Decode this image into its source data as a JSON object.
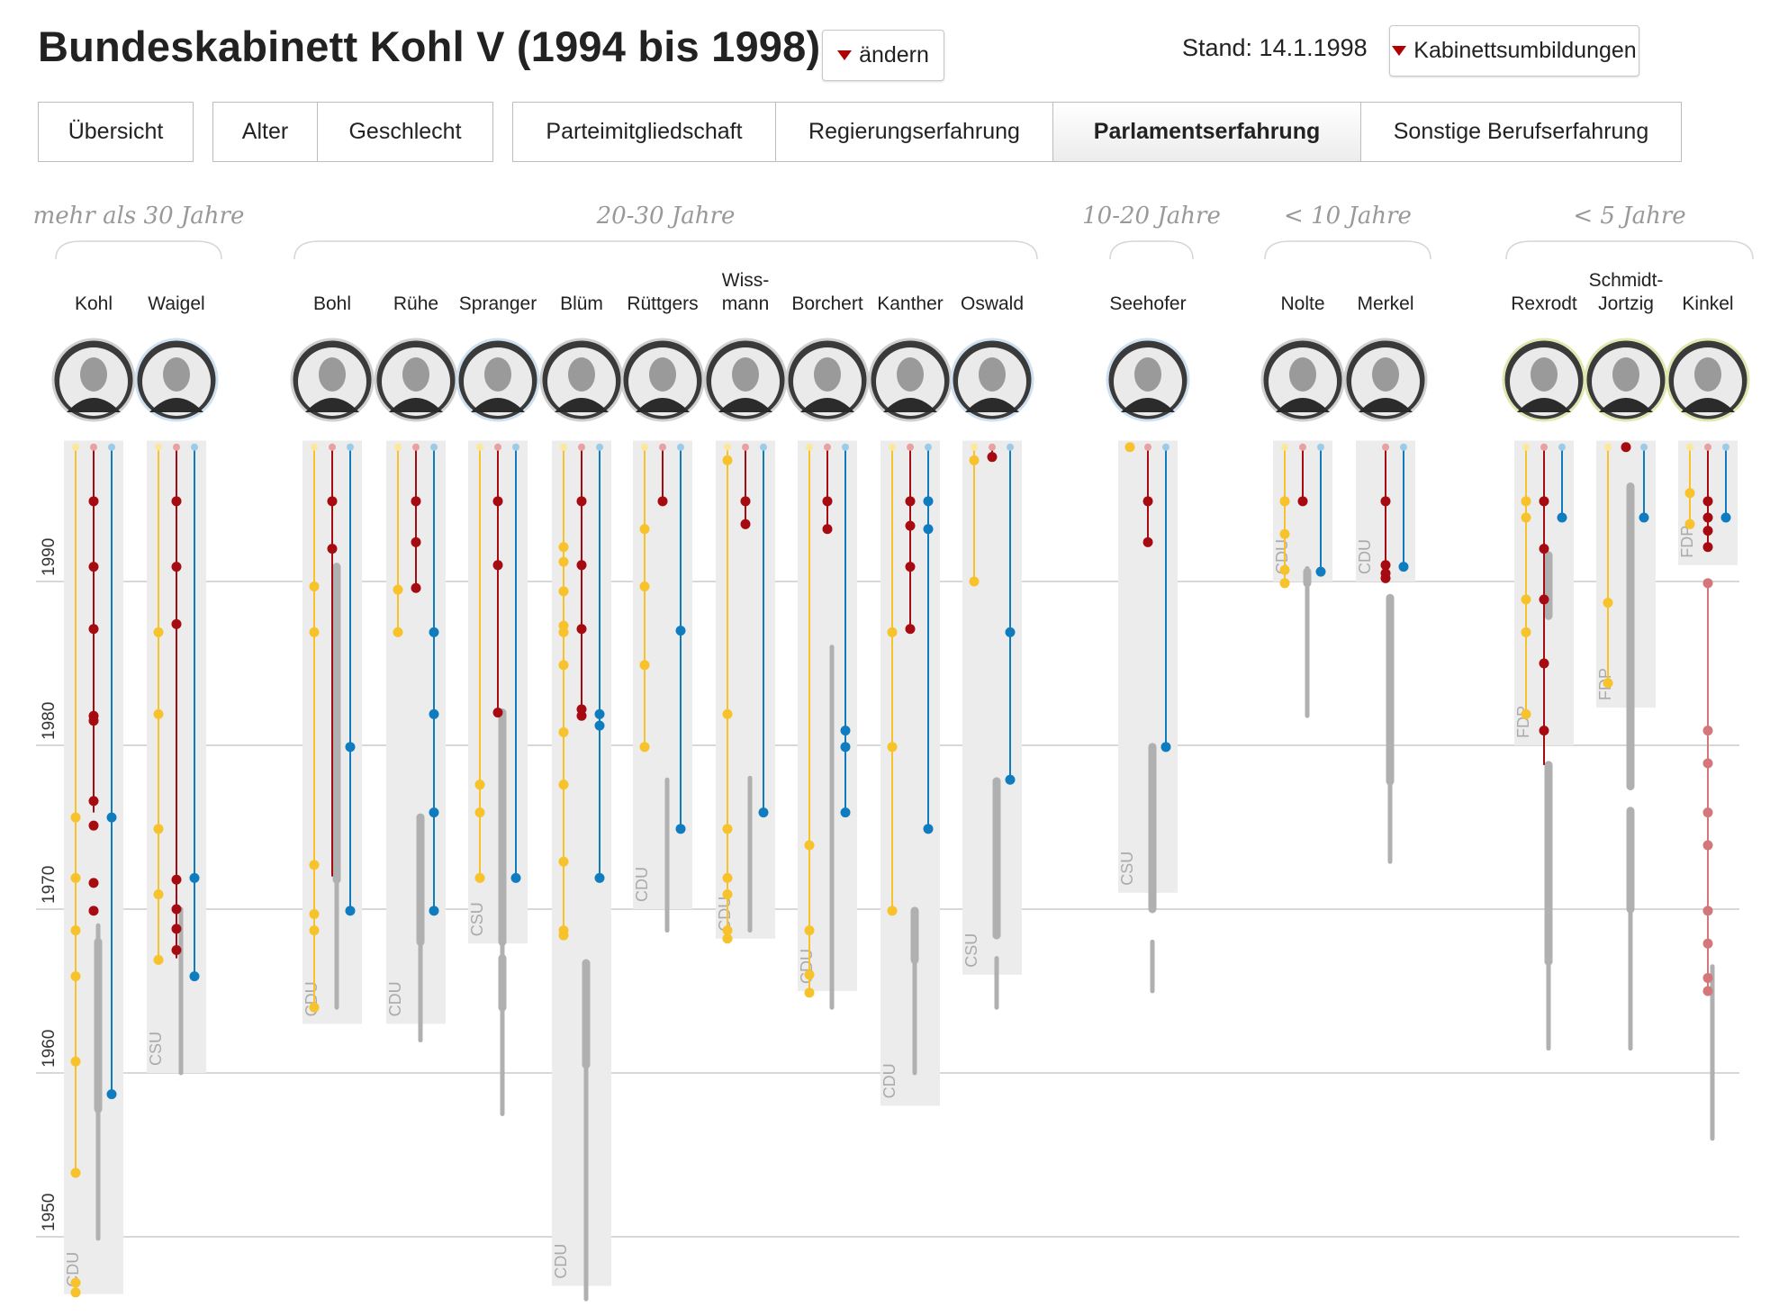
{
  "header": {
    "title": "Bundeskabinett  Kohl V (1994 bis 1998)",
    "change_label": "ändern",
    "stand": "Stand: 14.1.1998",
    "reshuffle_label": "Kabinettsumbildungen"
  },
  "tabs": [
    [
      {
        "label": "Übersicht",
        "active": false
      }
    ],
    [
      {
        "label": "Alter",
        "active": false
      },
      {
        "label": "Geschlecht",
        "active": false
      }
    ],
    [
      {
        "label": "Parteimitgliedschaft",
        "active": false
      },
      {
        "label": "Regierungserfahrung",
        "active": false
      },
      {
        "label": "Parlamentserfahrung",
        "active": true
      },
      {
        "label": "Sonstige Berufserfahrung",
        "active": false
      }
    ]
  ],
  "colors": {
    "landtag": "#f7c22a",
    "bundestag": "#a60b11",
    "bundestag_pre": "#d4777a",
    "europa": "#0f7cbf",
    "party_band": "#ececec",
    "career_bar": "#b0b0b0",
    "gridline": "#cccccc"
  },
  "chart_data": {
    "type": "timeline",
    "y_axis": {
      "range": [
        1998,
        1947
      ],
      "ticks": [
        1990,
        1980,
        1970,
        1960,
        1950
      ],
      "labels": [
        "1990",
        "1980",
        "1970",
        "1960",
        "1950"
      ]
    },
    "groups": [
      {
        "title": "mehr als 30 Jahre",
        "members": [
          "Kohl",
          "Waigel"
        ]
      },
      {
        "title": "20-30 Jahre",
        "members": [
          "Bohl",
          "Rühe",
          "Spranger",
          "Blüm",
          "Rüttgers",
          "Wissmann",
          "Borchert",
          "Kanther",
          "Oswald"
        ]
      },
      {
        "title": "10-20 Jahre",
        "members": [
          "Seehofer"
        ]
      },
      {
        "title": "< 10 Jahre",
        "members": [
          "Nolte",
          "Merkel"
        ]
      },
      {
        "title": "< 5 Jahre",
        "members": [
          "Rexrodt",
          "Schmidt-Jortzig",
          "Kinkel"
        ]
      }
    ],
    "persons": [
      {
        "name": [
          "Kohl"
        ],
        "party": "CDU",
        "party_since": 1946.5,
        "gray": [
          [
            1949.9,
            1969
          ],
          [
            1957.8,
            1968
          ]
        ],
        "yellow": {
          "end": 1953.9,
          "dots": [
            1946.6,
            1947.2,
            1953.9,
            1960.7,
            1965.9,
            1968.7,
            1971.9,
            1975.6
          ]
        },
        "red": {
          "end": 1975.9,
          "dots": [
            1976.6,
            1975.1,
            1971.6,
            1969.9,
            1981.5,
            1981.8,
            1987.1,
            1990.9,
            1994.9
          ]
        },
        "blue": {
          "end": 1958.7,
          "dots": [
            1958.7,
            1975.6
          ]
        }
      },
      {
        "name": [
          "Waigel"
        ],
        "party": "CSU",
        "party_since": 1960.0,
        "gray": [
          [
            1960,
            1970
          ]
        ],
        "yellow": {
          "end": 1966.9,
          "dots": [
            1966.9,
            1970.9,
            1974.9,
            1981.9,
            1986.9
          ]
        },
        "red": {
          "end": 1967.0,
          "dots": [
            1967.5,
            1968.8,
            1970.0,
            1971.8,
            1987.4,
            1990.9,
            1994.9
          ]
        },
        "blue": {
          "end": 1965.9,
          "dots": [
            1965.9,
            1971.9
          ]
        }
      },
      {
        "name": [
          "Bohl"
        ],
        "party": "CDU",
        "party_since": 1963.0,
        "gray": [
          [
            1964,
            1971.8
          ],
          [
            1971.8,
            1990.9
          ]
        ],
        "yellow": {
          "end": 1964.0,
          "dots": [
            1964.0,
            1968.7,
            1969.7,
            1972.7,
            1986.9,
            1989.7
          ]
        },
        "red": {
          "end": 1972.0,
          "dots": [
            1992.0,
            1994.9
          ]
        },
        "blue": {
          "end": 1969.9,
          "dots": [
            1969.9,
            1979.9
          ]
        }
      },
      {
        "name": [
          "Rühe"
        ],
        "party": "CDU",
        "party_since": 1963.0,
        "gray": [
          [
            1962,
            1970
          ],
          [
            1968,
            1975.6
          ]
        ],
        "yellow": {
          "end": 1986.9,
          "dots": [
            1986.9,
            1989.5
          ]
        },
        "red": {
          "end": 1989.6,
          "dots": [
            1989.6,
            1992.4,
            1994.9
          ]
        },
        "blue": {
          "end": 1969.9,
          "dots": [
            1969.9,
            1975.9,
            1981.9,
            1986.9
          ]
        }
      },
      {
        "name": [
          "Spranger"
        ],
        "party": "CSU",
        "party_since": 1967.9,
        "gray": [
          [
            1957.5,
            1967.8
          ],
          [
            1968.0,
            1982
          ],
          [
            1964,
            1967
          ]
        ],
        "yellow": {
          "end": 1971.9,
          "dots": [
            1971.9,
            1975.9,
            1977.6
          ]
        },
        "red": {
          "end": 1982.0,
          "dots": [
            1982.0,
            1991.0,
            1994.9
          ]
        },
        "blue": {
          "end": 1971.9,
          "dots": [
            1971.9
          ]
        }
      },
      {
        "name": [
          "Blüm"
        ],
        "party": "CDU",
        "party_since": 1947.0,
        "gray": [
          [
            1946.2,
            1960.5
          ],
          [
            1960.5,
            1966.7
          ]
        ],
        "yellow": {
          "end": 1968.4,
          "dots": [
            1968.4,
            1968.7,
            1972.9,
            1977.6,
            1980.8,
            1984.9,
            1986.9,
            1987.3,
            1989.4,
            1991.2,
            1992.1
          ]
        },
        "red": {
          "end": 1981.8,
          "dots": [
            1981.8,
            1982.2,
            1987.1,
            1991.0,
            1994.9
          ]
        },
        "blue": {
          "end": 1971.9,
          "dots": [
            1971.9,
            1981.2,
            1981.9
          ]
        }
      },
      {
        "name": [
          "Rüttgers"
        ],
        "party": "CDU",
        "party_since": 1970.0,
        "gray": [
          [
            1968.7,
            1977.9
          ]
        ],
        "yellow": {
          "end": 1979.9,
          "dots": [
            1979.9,
            1984.9,
            1989.7,
            1993.2
          ]
        },
        "red": {
          "end": 1994.9,
          "dots": [
            1994.9
          ]
        },
        "blue": {
          "end": 1974.9,
          "dots": [
            1974.9,
            1987.0
          ]
        }
      },
      {
        "name": [
          "Wiss-",
          "mann"
        ],
        "party": "CDU",
        "party_since": 1968.2,
        "gray": [
          [
            1968.7,
            1978
          ]
        ],
        "yellow": {
          "end": 1968.2,
          "dots": [
            1968.2,
            1968.7,
            1970.9,
            1971.9,
            1974.9,
            1981.9,
            1997.4
          ]
        },
        "red": {
          "end": 1993.2,
          "dots": [
            1993.5,
            1994.9
          ]
        },
        "blue": {
          "end": 1975.9,
          "dots": [
            1975.9
          ]
        }
      },
      {
        "name": [
          "Borchert"
        ],
        "party": "CDU",
        "party_since": 1965.0,
        "gray": [
          [
            1964,
            1986
          ]
        ],
        "yellow": {
          "end": 1964.9,
          "dots": [
            1964.9,
            1966.0,
            1968.7,
            1973.9
          ]
        },
        "red": {
          "end": 1993.2,
          "dots": [
            1993.2,
            1994.9
          ]
        },
        "blue": {
          "end": 1975.9,
          "dots": [
            1975.9,
            1979.9,
            1980.9
          ]
        }
      },
      {
        "name": [
          "Kanther"
        ],
        "party": "CDU",
        "party_since": 1958.0,
        "gray": [
          [
            1960,
            1966.7
          ],
          [
            1966.9,
            1969.9
          ]
        ],
        "yellow": {
          "end": 1969.9,
          "dots": [
            1969.9,
            1979.9,
            1986.9
          ]
        },
        "red": {
          "end": 1987.1,
          "dots": [
            1987.1,
            1990.9,
            1993.4,
            1994.9
          ]
        },
        "blue": {
          "end": 1974.9,
          "dots": [
            1974.9,
            1993.2,
            1994.9
          ]
        }
      },
      {
        "name": [
          "Oswald"
        ],
        "party": "CSU",
        "party_since": 1966.0,
        "gray": [
          [
            1964,
            1967
          ],
          [
            1968.4,
            1977.8
          ],
          [
            1974,
            1977.8
          ]
        ],
        "yellow": {
          "end": 1990.0,
          "dots": [
            1990.0,
            1997.4
          ]
        },
        "red": {
          "end": 1997.6,
          "dots": [
            1997.6
          ]
        },
        "blue": {
          "end": 1977.9,
          "dots": [
            1977.9,
            1986.9
          ]
        }
      },
      {
        "name": [
          "Seehofer"
        ],
        "party": "CSU",
        "party_since": 1971.0,
        "gray": [
          [
            1965,
            1968
          ],
          [
            1970,
            1979.9
          ]
        ],
        "yellow": {
          "end": 1998.2,
          "dots": [
            1998.2
          ]
        },
        "red": {
          "end": 1992.4,
          "dots": [
            1992.4,
            1994.9
          ]
        },
        "blue": {
          "end": 1979.9,
          "dots": [
            1979.9
          ]
        }
      },
      {
        "name": [
          "Nolte"
        ],
        "party": "CDU",
        "party_since": 1990.0,
        "gray": [
          [
            1981.8,
            1990.8
          ],
          [
            1989.9,
            1990.6
          ]
        ],
        "yellow": {
          "end": 1989.9,
          "dots": [
            1989.9,
            1990.7,
            1992.9,
            1994.9
          ]
        },
        "red": {
          "end": 1994.9,
          "dots": [
            1994.9
          ]
        },
        "blue": {
          "end": 1990.6,
          "dots": [
            1990.6
          ]
        }
      },
      {
        "name": [
          "Merkel"
        ],
        "party": "CDU",
        "party_since": 1990.0,
        "gray": [
          [
            1972.9,
            1977.8
          ],
          [
            1977.8,
            1989.0
          ]
        ],
        "yellow": null,
        "red": {
          "end": 1990.2,
          "dots": [
            1990.2,
            1990.5,
            1991.0,
            1994.9
          ]
        },
        "blue": {
          "end": 1990.9,
          "dots": [
            1990.9
          ]
        }
      },
      {
        "name": [
          "Rexrodt"
        ],
        "party": "FDP",
        "party_since": 1980.0,
        "gray": [
          [
            1961.5,
            1966.8
          ],
          [
            1966.8,
            1978.8
          ],
          [
            1987.9,
            1991.6
          ]
        ],
        "yellow": {
          "end": 1981.9,
          "dots": [
            1981.9,
            1986.9,
            1988.9,
            1993.9,
            1994.9
          ]
        },
        "red": {
          "end": 1978.8,
          "dots": [
            1980.9,
            1985.0,
            1988.9,
            1992.0,
            1994.9
          ]
        },
        "blue": {
          "end": 1993.9,
          "dots": [
            1993.9
          ]
        }
      },
      {
        "name": [
          "Schmidt-",
          "Jortzig"
        ],
        "party": "FDP",
        "party_since": 1982.3,
        "gray": [
          [
            1961.5,
            1969.8
          ],
          [
            1970,
            1976
          ],
          [
            1977.5,
            1995.8
          ]
        ],
        "yellow": {
          "end": 1983.8,
          "dots": [
            1983.8,
            1988.7
          ]
        },
        "red": {
          "end": 1998.2,
          "dots": [
            1998.2
          ]
        },
        "blue": {
          "end": 1993.9,
          "dots": [
            1993.9
          ]
        }
      },
      {
        "name": [
          "Kinkel"
        ],
        "party": "FDP",
        "party_since": 1991.0,
        "gray": [
          [
            1956,
            1966.5
          ]
        ],
        "yellow": {
          "end": 1993.5,
          "dots": [
            1993.5,
            1995.4
          ]
        },
        "red_pre": {
          "from": 1965.0,
          "to": 1990.0,
          "dots": [
            1965.0,
            1965.8,
            1967.9,
            1969.9,
            1973.9,
            1975.9,
            1978.9,
            1980.9,
            1989.9
          ]
        },
        "red": {
          "end": 1992.1,
          "dots": [
            1992.1,
            1993.1,
            1993.9,
            1994.9
          ]
        },
        "blue": {
          "end": 1993.9,
          "dots": [
            1993.9
          ]
        }
      }
    ]
  }
}
